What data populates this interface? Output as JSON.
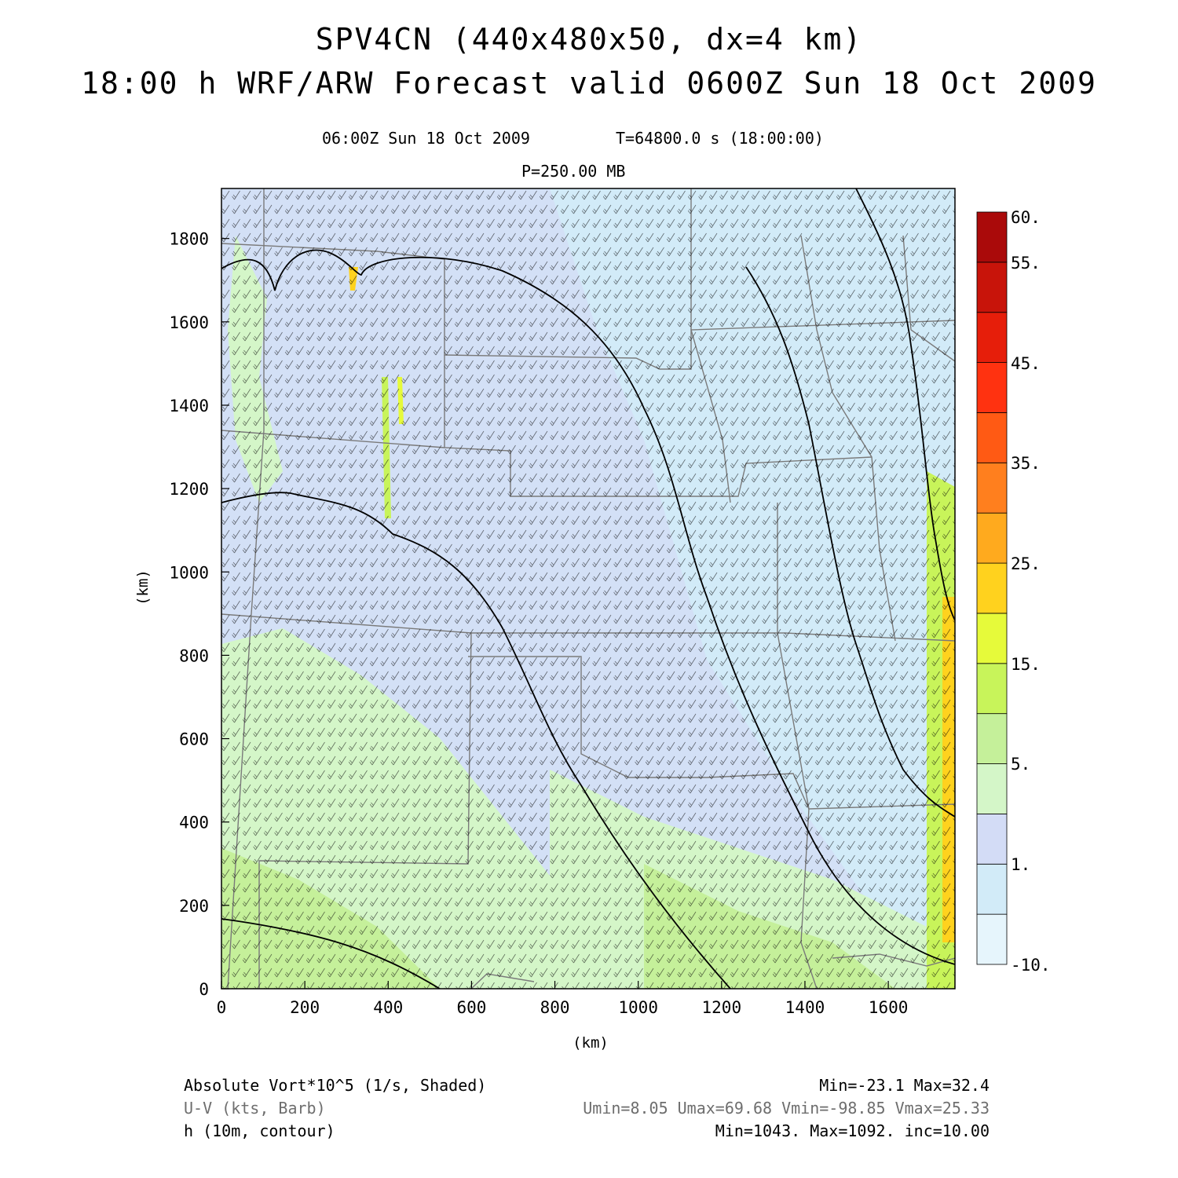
{
  "title_line1": "SPV4CN (440x480x50, dx=4 km)",
  "title_line2": "18:00 h WRF/ARW Forecast valid 0600Z Sun 18 Oct 2009",
  "valid_time": "06:00Z Sun 18 Oct 2009",
  "model_time": "T=64800.0 s (18:00:00)",
  "level": "P=250.00 MB",
  "chart_data": {
    "type": "heatmap",
    "xlabel": "(km)",
    "ylabel": "(km)",
    "xlim": [
      0,
      1760
    ],
    "ylim": [
      0,
      1920
    ],
    "x_ticks": [
      0,
      200,
      400,
      600,
      800,
      1000,
      1200,
      1400,
      1600
    ],
    "y_ticks": [
      0,
      200,
      400,
      600,
      800,
      1000,
      1200,
      1400,
      1600,
      1800
    ],
    "colorbar": {
      "labels": [
        "-10.",
        "1.",
        "5.",
        "15.",
        "25.",
        "35.",
        "45.",
        "55.",
        "60."
      ],
      "colors": [
        "#e6f5fc",
        "#d2ebf8",
        "#d3dcf6",
        "#d4f6c8",
        "#c5f09a",
        "#c8f45a",
        "#e6fa3a",
        "#ffd21e",
        "#ffaa1e",
        "#ff7f1e",
        "#ff5a14",
        "#ff3210",
        "#e61e0a",
        "#c8140a",
        "#aa0a0a"
      ]
    }
  },
  "legend_left": [
    "Absolute Vort*10^5 (1/s, Shaded)",
    "U-V (kts, Barb)",
    "h (10m, contour)"
  ],
  "legend_right": [
    "Min=-23.1 Max=32.4",
    "Umin=8.05 Umax=69.68 Vmin=-98.85 Vmax=25.33",
    "Min=1043. Max=1092. inc=10.00"
  ],
  "legend_colors": [
    "#000000",
    "#6e6e6e",
    "#000000"
  ]
}
